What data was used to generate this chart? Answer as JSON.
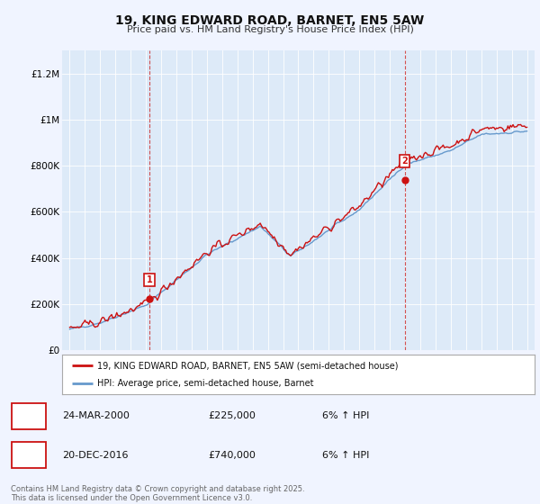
{
  "title": "19, KING EDWARD ROAD, BARNET, EN5 5AW",
  "subtitle": "Price paid vs. HM Land Registry's House Price Index (HPI)",
  "footnote": "Contains HM Land Registry data © Crown copyright and database right 2025.\nThis data is licensed under the Open Government Licence v3.0.",
  "legend_line1": "19, KING EDWARD ROAD, BARNET, EN5 5AW (semi-detached house)",
  "legend_line2": "HPI: Average price, semi-detached house, Barnet",
  "sale1_label": "1",
  "sale1_date": "24-MAR-2000",
  "sale1_price": "£225,000",
  "sale1_hpi": "6% ↑ HPI",
  "sale2_label": "2",
  "sale2_date": "20-DEC-2016",
  "sale2_price": "£740,000",
  "sale2_hpi": "6% ↑ HPI",
  "background_color": "#f0f4ff",
  "plot_bg_color": "#ddeaf8",
  "hpi_line_color": "#6699cc",
  "price_line_color": "#cc1111",
  "sale_marker_color": "#cc1111",
  "dashed_line_color": "#cc3333",
  "grid_color": "#ffffff",
  "ylim": [
    0,
    1300000
  ],
  "yticks": [
    0,
    200000,
    400000,
    600000,
    800000,
    1000000,
    1200000
  ],
  "ytick_labels": [
    "£0",
    "£200K",
    "£400K",
    "£600K",
    "£800K",
    "£1M",
    "£1.2M"
  ],
  "sale1_x": 2000.23,
  "sale1_y": 225000,
  "sale2_x": 2016.97,
  "sale2_y": 740000,
  "xmin": 1994.5,
  "xmax": 2025.5
}
